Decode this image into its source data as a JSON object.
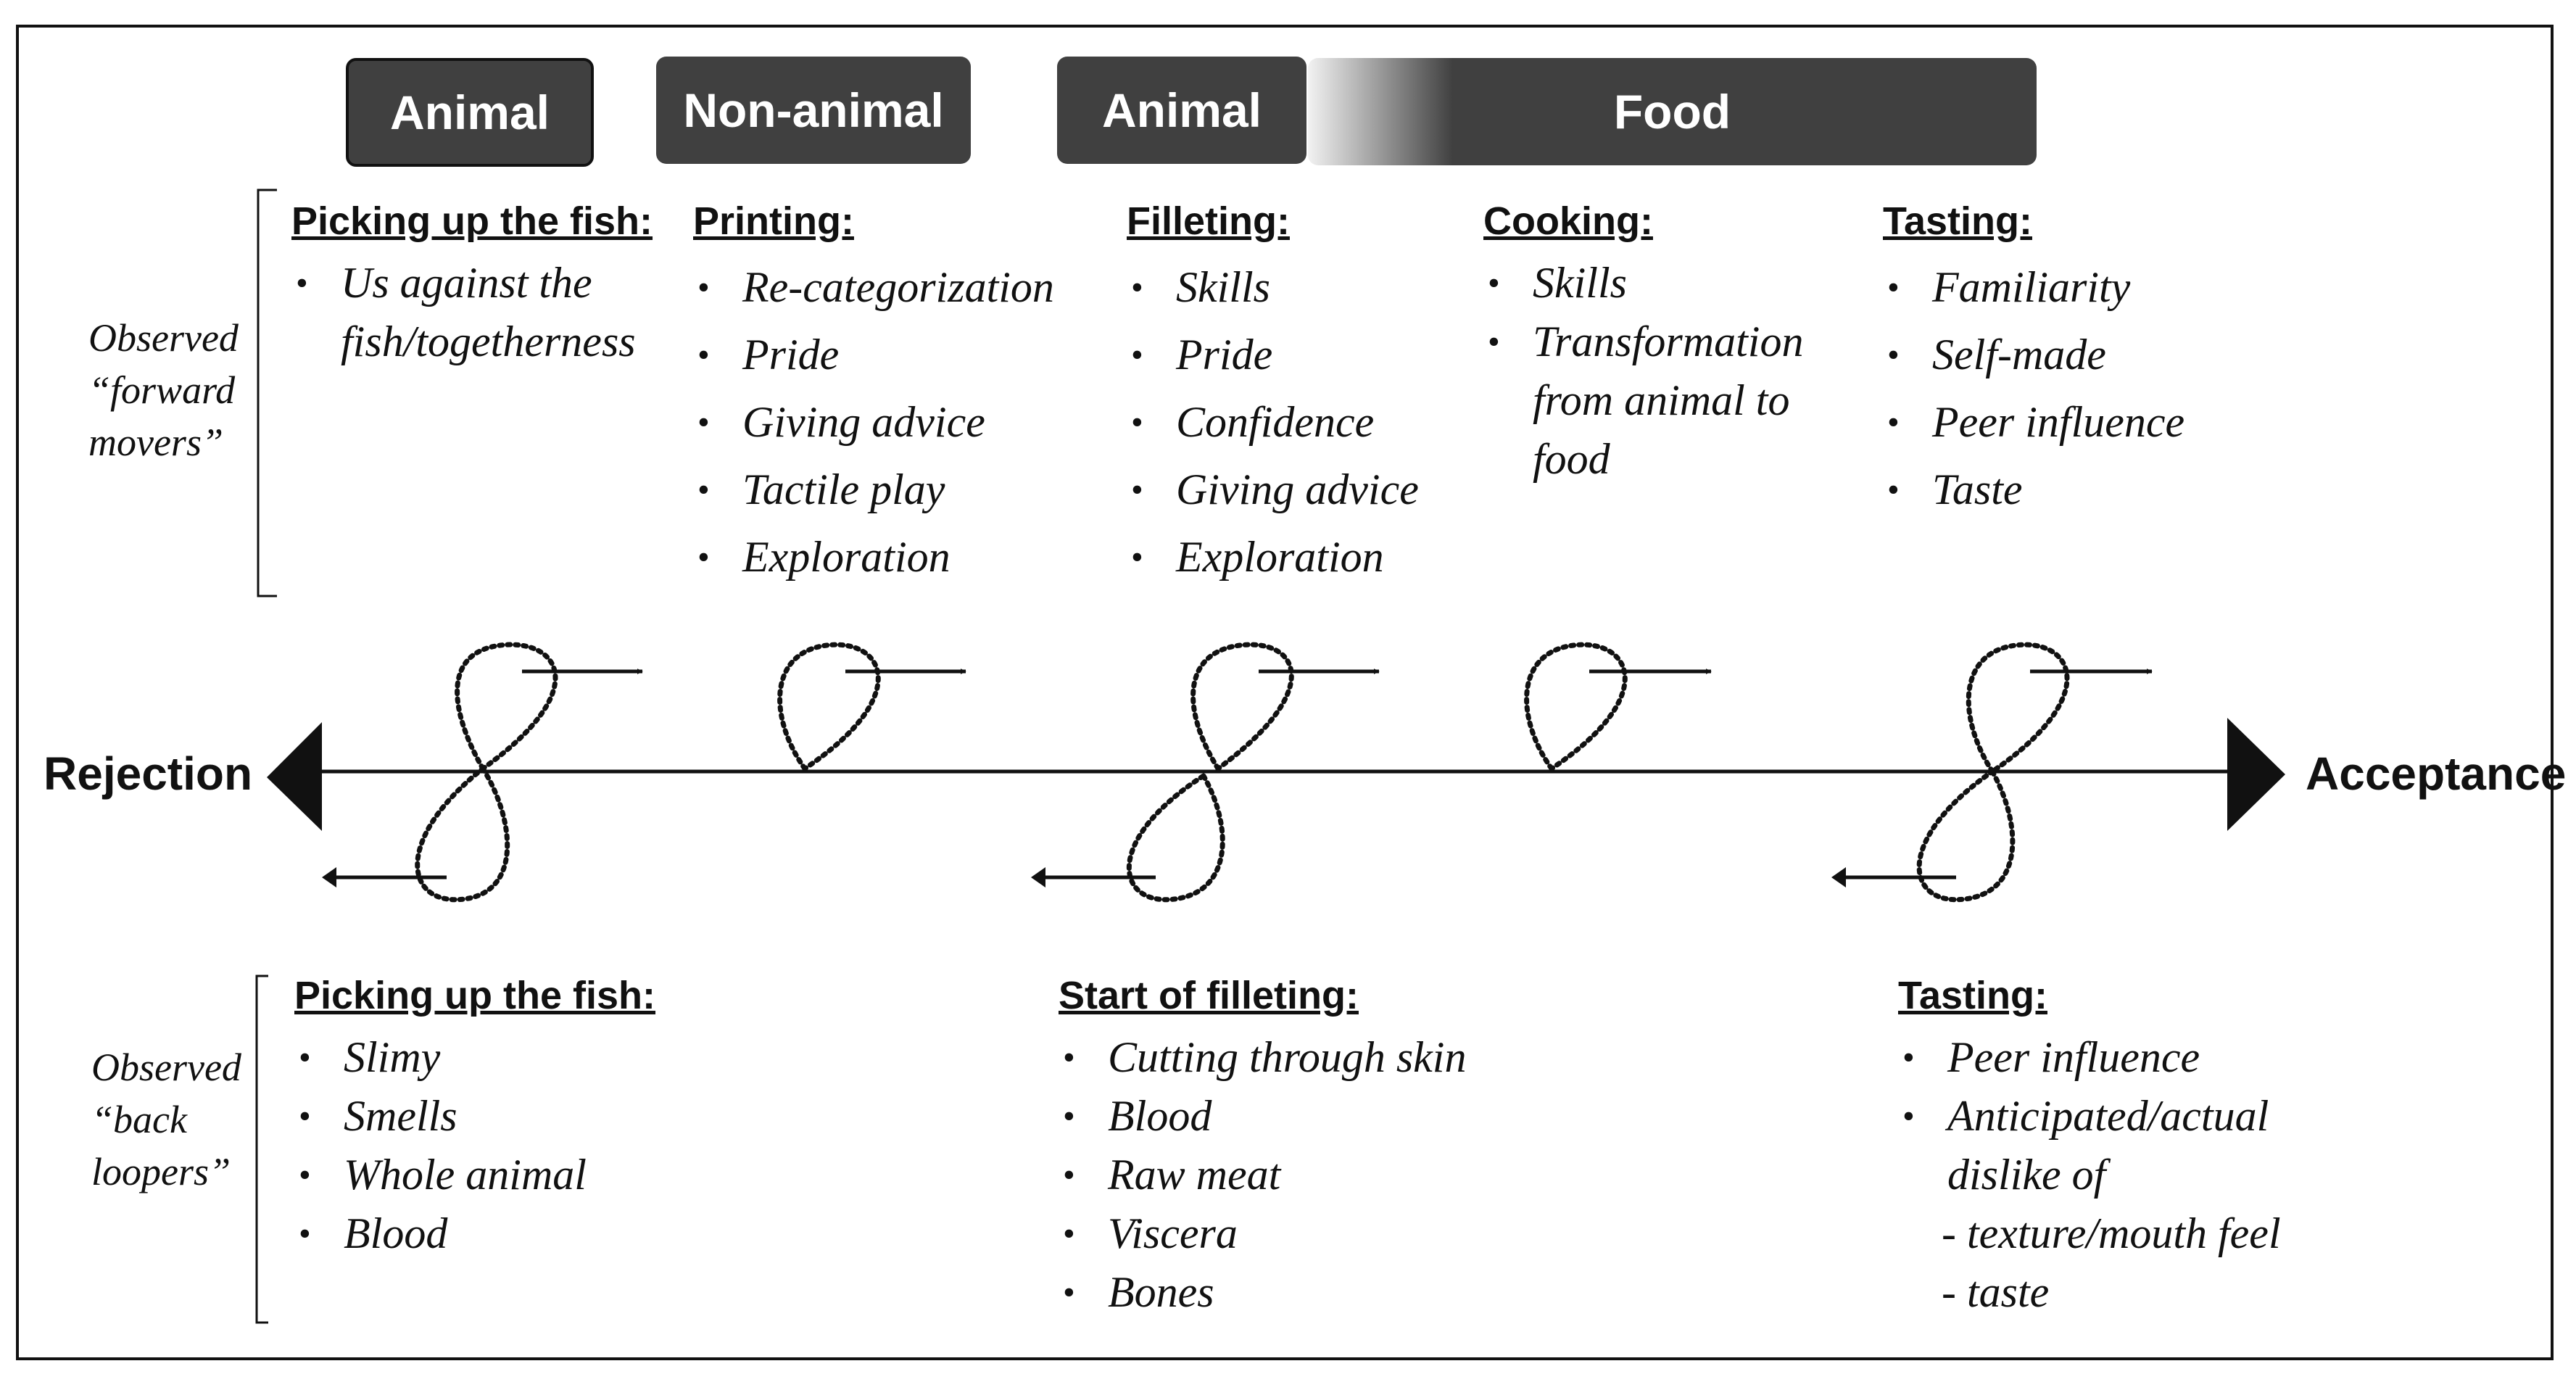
{
  "stages": {
    "animal_1": "Animal",
    "non_animal": "Non-animal",
    "animal_2": "Animal",
    "food": "Food"
  },
  "axis": {
    "left": "Rejection",
    "right": "Acceptance"
  },
  "side_labels": {
    "forward": [
      "Observed",
      "“forward",
      "movers”"
    ],
    "back": [
      "Observed",
      "“back",
      "loopers”"
    ]
  },
  "forward_movers": [
    {
      "heading": "Picking up the fish:",
      "items": [
        "Us against the",
        "fish/togetherness"
      ]
    },
    {
      "heading": "Printing:",
      "items": [
        "Re-categorization",
        "Pride",
        "Giving advice",
        "Tactile play",
        "Exploration"
      ]
    },
    {
      "heading": "Filleting:",
      "items": [
        "Skills",
        "Pride",
        "Confidence",
        "Giving advice",
        "Exploration"
      ]
    },
    {
      "heading": "Cooking:",
      "items": [
        "Skills",
        "Transformation",
        "from animal to",
        "food"
      ]
    },
    {
      "heading": "Tasting:",
      "items": [
        "Familiarity",
        "Self-made",
        "Peer influence",
        "Taste"
      ]
    }
  ],
  "back_loopers": [
    {
      "heading": "Picking up the fish:",
      "items": [
        "Slimy",
        "Smells",
        "Whole animal",
        "Blood"
      ]
    },
    {
      "heading": "Start of filleting:",
      "items": [
        "Cutting through skin",
        "Blood",
        "Raw meat",
        "Viscera",
        "Bones"
      ]
    },
    {
      "heading": "Tasting:",
      "items": [
        "Peer influence",
        "Anticipated/actual",
        "dislike of",
        "- texture/mouth feel",
        "- taste"
      ]
    }
  ]
}
